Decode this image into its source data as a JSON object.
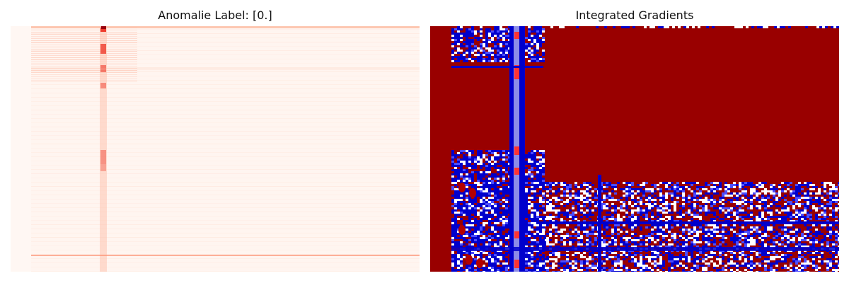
{
  "chart_data": [
    {
      "type": "heatmap",
      "title": "Anomalie Label: [0.]",
      "xlabel": "",
      "ylabel": "",
      "colormap": "Reds",
      "axes": "off",
      "grid": false,
      "features": {
        "bright_column": "narrow vertical band of higher intensity near the left third",
        "bottom_line": "thin horizontal line near the bottom"
      }
    },
    {
      "type": "heatmap",
      "title": "Integrated Gradients",
      "xlabel": "",
      "ylabel": "",
      "colormap": "seismic",
      "axes": "off",
      "grid": false,
      "colors": {
        "positive": "#990000",
        "negative": "#0000cc",
        "zero": "#ffffff"
      }
    }
  ]
}
